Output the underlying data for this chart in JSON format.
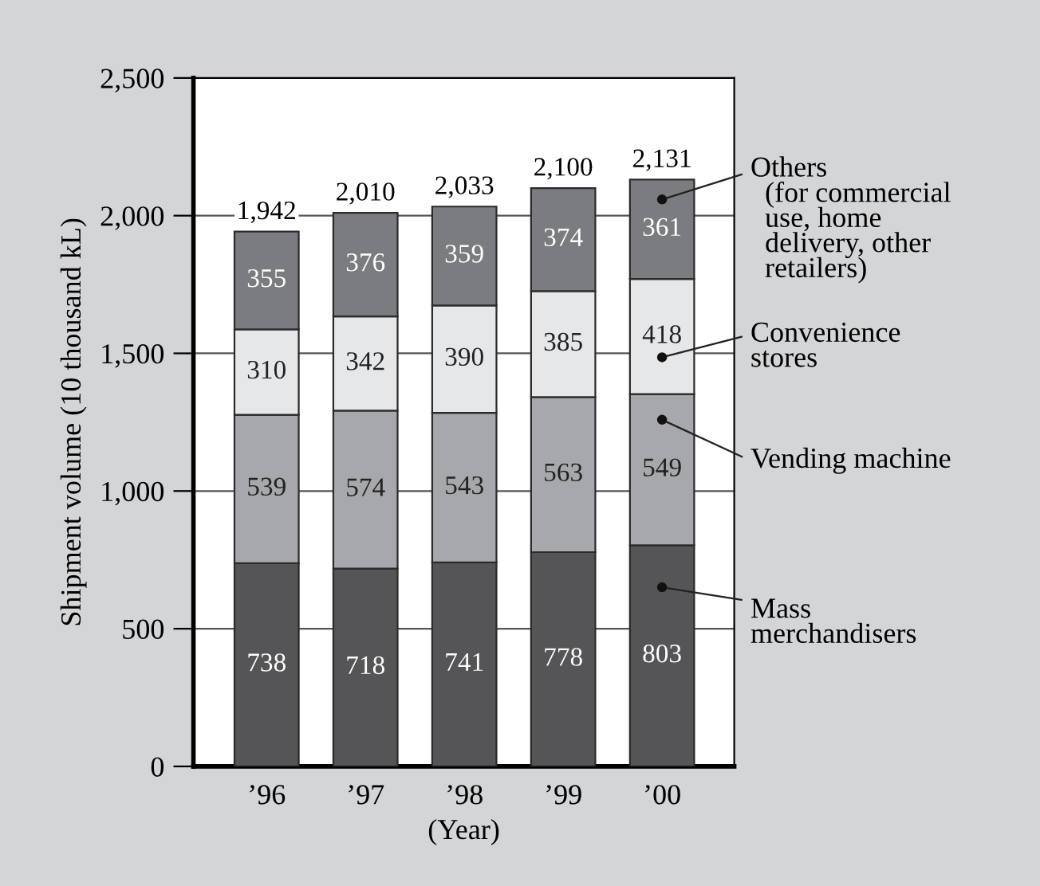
{
  "chart_data": {
    "type": "bar",
    "stacked": true,
    "ylabel": "Shipment volume (10 thousand kL)",
    "xlabel": "(Year)",
    "categories": [
      "’96",
      "’97",
      "’98",
      "’99",
      "’00"
    ],
    "series": [
      {
        "name": "Mass\nmerchandisers",
        "color": "#555557",
        "values": [
          738,
          718,
          741,
          778,
          803
        ]
      },
      {
        "name": "Vending machine",
        "color": "#a7a8ab",
        "values": [
          539,
          574,
          543,
          563,
          549
        ]
      },
      {
        "name": "Convenience\nstores",
        "color": "#e6e7e9",
        "values": [
          310,
          342,
          390,
          385,
          418
        ]
      },
      {
        "name": "Others\n  (for commercial\n  use, home\n  delivery, other\n  retailers)",
        "color": "#7b7c7f",
        "values": [
          355,
          376,
          359,
          374,
          361
        ]
      }
    ],
    "totals": [
      "1,942",
      "2,010",
      "2,033",
      "2,100",
      "2,131"
    ],
    "data_labels": true,
    "ylim": [
      0,
      2500
    ],
    "yticks": [
      {
        "value": 0,
        "label": "0"
      },
      {
        "value": 500,
        "label": "500"
      },
      {
        "value": 1000,
        "label": "1,000"
      },
      {
        "value": 1500,
        "label": "1,500"
      },
      {
        "value": 2000,
        "label": "2,000"
      },
      {
        "value": 2500,
        "label": "2,500"
      }
    ],
    "grid": "y",
    "legend": "right"
  }
}
